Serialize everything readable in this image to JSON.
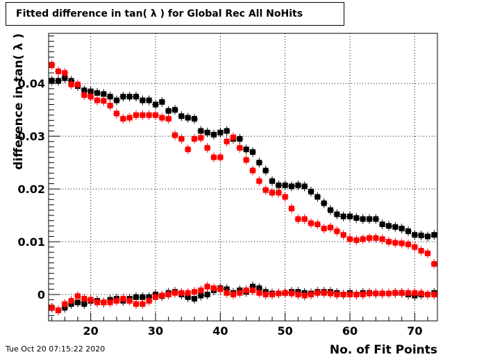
{
  "title": "Fitted difference in tan( λ ) for Global Rec All NoHits",
  "footer": {
    "date": "Tue Oct 20 07:15:22 2020"
  },
  "colors": {
    "series_black": "#000000",
    "series_red": "#ff0000",
    "grid": "#000000",
    "frame": "#000000"
  },
  "chart_data": {
    "type": "scatter",
    "title": "Fitted difference in tan( λ ) for Global Rec All NoHits",
    "xlabel": "No. of Fit Points",
    "ylabel": "difference in tan( λ )",
    "xlim": [
      13.5,
      73.5
    ],
    "ylim": [
      -0.005,
      0.0495
    ],
    "x_ticks": [
      20,
      30,
      40,
      50,
      60,
      70
    ],
    "y_ticks": [
      0,
      0.01,
      0.02,
      0.03,
      0.04
    ],
    "y_tick_labels": [
      "0",
      "0.01",
      "0.02",
      "0.03",
      "0.04"
    ],
    "grid": true,
    "x": [
      14,
      15,
      16,
      17,
      18,
      19,
      20,
      21,
      22,
      23,
      24,
      25,
      26,
      27,
      28,
      29,
      30,
      31,
      32,
      33,
      34,
      35,
      36,
      37,
      38,
      39,
      40,
      41,
      42,
      43,
      44,
      45,
      46,
      47,
      48,
      49,
      50,
      51,
      52,
      53,
      54,
      55,
      56,
      57,
      58,
      59,
      60,
      61,
      62,
      63,
      64,
      65,
      66,
      67,
      68,
      69,
      70,
      71,
      72,
      73
    ],
    "series": [
      {
        "color": "#000000",
        "values": [
          0.0405,
          0.0405,
          0.041,
          0.0405,
          0.0395,
          0.0387,
          0.0385,
          0.0382,
          0.038,
          0.0375,
          0.0368,
          0.0375,
          0.0375,
          0.0375,
          0.0368,
          0.0368,
          0.036,
          0.0365,
          0.0348,
          0.035,
          0.0338,
          0.0335,
          0.0333,
          0.031,
          0.0307,
          0.0303,
          0.0307,
          0.031,
          0.0295,
          0.0295,
          0.0275,
          0.027,
          0.025,
          0.0235,
          0.0215,
          0.0207,
          0.0207,
          0.0205,
          0.0207,
          0.0205,
          0.0195,
          0.0185,
          0.0173,
          0.016,
          0.0152,
          0.0148,
          0.0148,
          0.0145,
          0.0143,
          0.0143,
          0.0143,
          0.0133,
          0.013,
          0.0128,
          0.0125,
          0.012,
          0.0113,
          0.0112,
          0.011,
          0.0113
        ]
      },
      {
        "color": "#ff0000",
        "values": [
          0.0435,
          0.0423,
          0.042,
          0.0398,
          0.0398,
          0.0378,
          0.0375,
          0.0368,
          0.0367,
          0.0358,
          0.0343,
          0.0333,
          0.0335,
          0.034,
          0.034,
          0.034,
          0.034,
          0.0335,
          0.0333,
          0.0302,
          0.0295,
          0.0275,
          0.0295,
          0.0297,
          0.0278,
          0.026,
          0.026,
          0.029,
          0.0298,
          0.0278,
          0.0255,
          0.0235,
          0.0215,
          0.0198,
          0.0193,
          0.0193,
          0.0185,
          0.0163,
          0.0143,
          0.0143,
          0.0135,
          0.0133,
          0.0125,
          0.0127,
          0.012,
          0.0113,
          0.0105,
          0.0103,
          0.0105,
          0.0107,
          0.0107,
          0.0105,
          0.01,
          0.0098,
          0.0097,
          0.0095,
          0.009,
          0.0083,
          0.0078,
          0.0058
        ]
      },
      {
        "color": "#000000",
        "values": [
          -0.0025,
          -0.003,
          -0.0025,
          -0.0018,
          -0.0015,
          -0.0018,
          -0.0012,
          -0.0012,
          -0.0015,
          -0.001,
          -0.0008,
          -0.0012,
          -0.0008,
          -0.0005,
          -0.0005,
          -0.0005,
          0.0,
          -0.0003,
          0.0003,
          0.0005,
          0.0,
          -0.0005,
          -0.0008,
          -0.0002,
          0.0,
          0.0008,
          0.0012,
          0.001,
          0.0003,
          0.0008,
          0.0005,
          0.0015,
          0.0012,
          0.0005,
          0.0002,
          0.0002,
          0.0003,
          0.0005,
          0.0005,
          0.0003,
          0.0002,
          0.0005,
          0.0005,
          0.0005,
          0.0003,
          0.0,
          0.0003,
          0.0,
          0.0003,
          0.0003,
          0.0002,
          0.0002,
          0.0002,
          0.0003,
          0.0003,
          0.0,
          -0.0002,
          0.0,
          0.0,
          0.0003
        ]
      },
      {
        "color": "#ff0000",
        "values": [
          -0.0025,
          -0.003,
          -0.0018,
          -0.0012,
          -0.0003,
          -0.0008,
          -0.001,
          -0.0015,
          -0.0015,
          -0.0015,
          -0.0012,
          -0.0008,
          -0.0012,
          -0.0018,
          -0.0018,
          -0.0012,
          -0.0005,
          -0.0002,
          0.0,
          0.0003,
          0.0003,
          0.0003,
          0.0005,
          0.0008,
          0.0015,
          0.0012,
          0.001,
          0.0003,
          0.0,
          0.0003,
          0.0008,
          0.0008,
          0.0003,
          0.0,
          0.0,
          0.0002,
          0.0003,
          0.0002,
          0.0,
          -0.0002,
          0.0,
          0.0003,
          0.0003,
          0.0002,
          0.0,
          0.0,
          0.0,
          0.0,
          0.0,
          0.0002,
          0.0002,
          0.0002,
          0.0002,
          0.0003,
          0.0003,
          0.0003,
          0.0003,
          0.0002,
          0.0,
          0.0
        ]
      }
    ]
  }
}
